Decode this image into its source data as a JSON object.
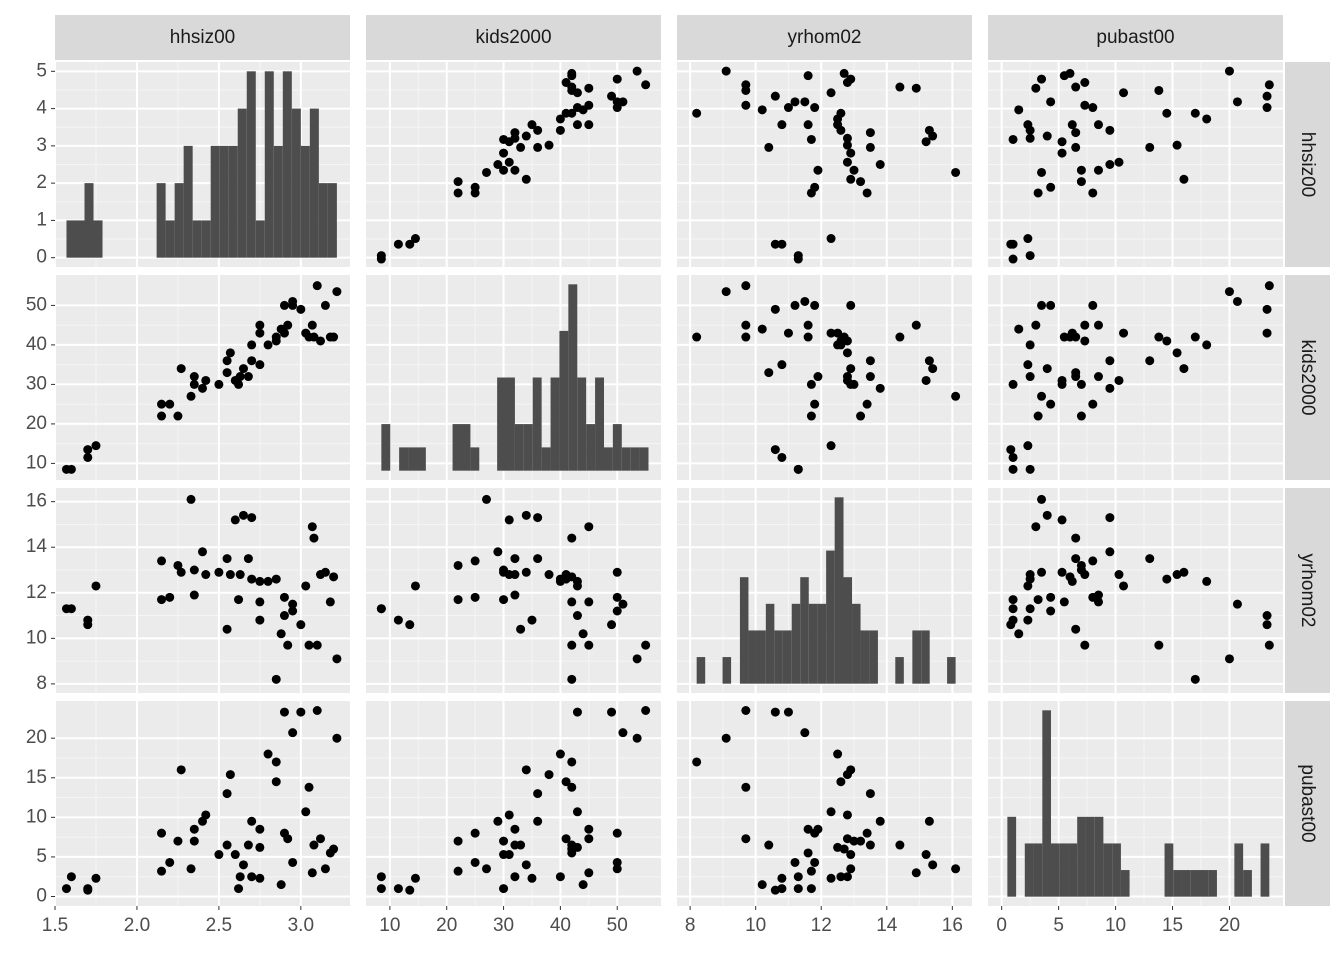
{
  "chart_data": {
    "type": "scatter-matrix",
    "variables": [
      "hhsiz00",
      "kids2000",
      "yrhom02",
      "pubast00"
    ],
    "point_color": "#000000",
    "hist_color": "#4d4d4d",
    "grid": true,
    "columns": [
      {
        "lim": [
          1.5,
          3.3
        ],
        "ticks": [
          {
            "value": 1.5,
            "label": "1.5"
          },
          {
            "value": 2,
            "label": "2.0"
          },
          {
            "value": 2.5,
            "label": "2.5"
          },
          {
            "value": 3,
            "label": "3.0"
          }
        ],
        "values": [
          1.57,
          1.6,
          1.7,
          1.7,
          1.75,
          2.15,
          2.15,
          2.2,
          2.25,
          2.27,
          2.33,
          2.35,
          2.35,
          2.4,
          2.42,
          2.5,
          2.55,
          2.55,
          2.57,
          2.6,
          2.62,
          2.63,
          2.65,
          2.68,
          2.7,
          2.7,
          2.75,
          2.75,
          2.75,
          2.8,
          2.85,
          2.85,
          2.88,
          2.9,
          2.9,
          2.92,
          2.95,
          2.95,
          3.0,
          3.03,
          3.05,
          3.07,
          3.08,
          3.1,
          3.12,
          3.15,
          3.18,
          3.2,
          3.22
        ]
      },
      {
        "lim": [
          5.8,
          57.7
        ],
        "ticks": [
          10,
          20,
          30,
          40,
          50
        ],
        "values": [
          8.5,
          8.5,
          11.5,
          13.5,
          14.5,
          25,
          22,
          25,
          22,
          34,
          27,
          30,
          32,
          29,
          31,
          30,
          33,
          36,
          38,
          31,
          30,
          32,
          34,
          32,
          40,
          36,
          35,
          43,
          45,
          40,
          41,
          42,
          44,
          50,
          43,
          45,
          51,
          50,
          49,
          43,
          42,
          45,
          42,
          55,
          41,
          50,
          42,
          42,
          53.5
        ]
      },
      {
        "lim": [
          7.6,
          16.6
        ],
        "ticks": [
          8,
          10,
          12,
          14,
          16
        ],
        "values": [
          11.3,
          11.3,
          10.8,
          10.6,
          12.3,
          13.4,
          11.7,
          11.8,
          13.2,
          12.9,
          16.1,
          13.0,
          11.9,
          13.8,
          12.8,
          12.9,
          10.4,
          13.5,
          12.8,
          15.2,
          11.7,
          12.8,
          15.4,
          13.5,
          12.6,
          15.3,
          10.8,
          12.5,
          11.6,
          12.5,
          12.6,
          8.2,
          10.2,
          11.8,
          11.0,
          9.7,
          11.5,
          11.2,
          10.6,
          12.3,
          9.7,
          14.9,
          14.4,
          9.7,
          12.8,
          12.9,
          11.6,
          12.7,
          9.1
        ]
      },
      {
        "lim": [
          -1.2,
          24.7
        ],
        "ticks": [
          0,
          5,
          10,
          15,
          20
        ],
        "values": [
          1,
          2.5,
          1,
          0.8,
          2.3,
          8,
          3.2,
          4.3,
          7,
          16,
          3.5,
          7,
          8.5,
          9.5,
          10.3,
          5.3,
          6.5,
          13,
          15.4,
          5.3,
          1,
          2.5,
          4,
          6.5,
          2.5,
          9.5,
          2.3,
          6.2,
          8.5,
          18,
          14.5,
          17,
          1.5,
          8,
          23.3,
          7.3,
          20.7,
          4.3,
          23.3,
          10.7,
          13.8,
          3,
          6.5,
          23.5,
          7.3,
          3.5,
          5.5,
          6,
          20
        ]
      }
    ],
    "histograms": [
      {
        "bins": [
          1.57,
          1.625,
          1.68,
          1.735,
          1.79,
          1.845,
          1.9,
          1.955,
          2.01,
          2.065,
          2.12,
          2.175,
          2.23,
          2.285,
          2.34,
          2.395,
          2.45,
          2.505,
          2.56,
          2.615,
          2.67,
          2.725,
          2.78,
          2.835,
          2.89,
          2.945,
          3.0,
          3.055,
          3.11,
          3.165,
          3.22
        ],
        "counts": [
          1,
          1,
          2,
          1,
          0,
          0,
          0,
          0,
          0,
          0,
          2,
          1,
          2,
          3,
          1,
          1,
          3,
          3,
          3,
          4,
          5,
          1,
          5,
          3,
          5,
          4,
          3,
          4,
          2,
          2
        ],
        "ylim": [
          -0.25,
          5.25
        ],
        "yticks": [
          0,
          1,
          2,
          3,
          4,
          5
        ]
      },
      {
        "bins": [
          8.5,
          10.07,
          11.63,
          13.2,
          14.77,
          16.33,
          17.9,
          19.47,
          21.03,
          22.6,
          24.17,
          25.73,
          27.3,
          28.87,
          30.43,
          32.0,
          33.57,
          35.13,
          36.7,
          38.27,
          39.83,
          41.4,
          42.97,
          44.53,
          46.1,
          47.67,
          49.23,
          50.8,
          52.37,
          53.93,
          55.5
        ],
        "counts": [
          2,
          0,
          1,
          1,
          1,
          0,
          0,
          0,
          2,
          2,
          1,
          0,
          0,
          4,
          4,
          2,
          2,
          4,
          1,
          4,
          6,
          8,
          4,
          2,
          4,
          1,
          2,
          1,
          1,
          1
        ],
        "ylim": [
          -0.4,
          8.4
        ]
      },
      {
        "bins": [
          8.2,
          8.46,
          8.73,
          8.99,
          9.25,
          9.52,
          9.78,
          10.04,
          10.31,
          10.57,
          10.83,
          11.1,
          11.36,
          11.62,
          11.89,
          12.15,
          12.41,
          12.68,
          12.94,
          13.2,
          13.47,
          13.73,
          13.99,
          14.26,
          14.52,
          14.78,
          15.05,
          15.31,
          15.57,
          15.84,
          16.1
        ],
        "counts": [
          1,
          0,
          0,
          1,
          0,
          4,
          2,
          2,
          3,
          2,
          2,
          3,
          4,
          3,
          3,
          5,
          7,
          4,
          3,
          2,
          2,
          0,
          0,
          1,
          0,
          2,
          2,
          0,
          0,
          1
        ],
        "ylim": [
          -0.35,
          7.35
        ]
      },
      {
        "bins": [
          0.5,
          1.27,
          2.03,
          2.8,
          3.57,
          4.33,
          5.1,
          5.87,
          6.63,
          7.4,
          8.17,
          8.93,
          9.7,
          10.47,
          11.23,
          12.0,
          12.77,
          13.53,
          14.3,
          15.07,
          15.83,
          16.6,
          17.37,
          18.13,
          18.9,
          19.67,
          20.43,
          21.2,
          21.97,
          22.73,
          23.5
        ],
        "counts": [
          3,
          0,
          2,
          2,
          7,
          2,
          2,
          2,
          3,
          3,
          3,
          2,
          2,
          1,
          0,
          0,
          0,
          0,
          2,
          1,
          1,
          1,
          1,
          1,
          0,
          0,
          2,
          1,
          0,
          2
        ],
        "ylim": [
          -0.35,
          7.35
        ]
      }
    ]
  }
}
